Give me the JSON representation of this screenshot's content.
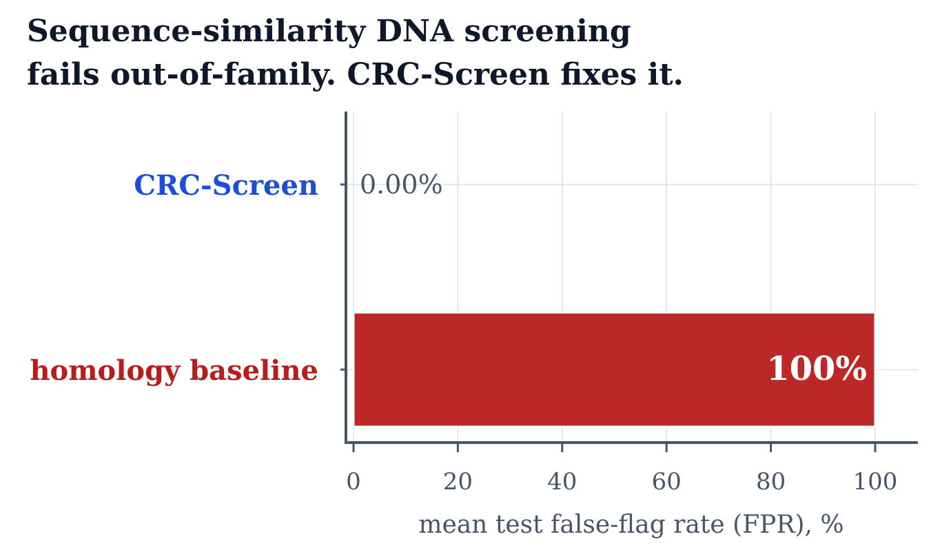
{
  "title_lines": [
    "Sequence-similarity DNA screening",
    "fails out-of-family. CRC-Screen fixes it."
  ],
  "colors": {
    "crc_screen": "#1d4ed8",
    "homology_baseline": "#b91c1c",
    "axis": "#475569",
    "tick_text": "#475569",
    "grid": "#dbe1ea",
    "title": "#0f172a"
  },
  "chart_data": {
    "type": "bar",
    "orientation": "horizontal",
    "title": "Sequence-similarity DNA screening fails out-of-family. CRC-Screen fixes it.",
    "categories": [
      "CRC-Screen",
      "homology baseline"
    ],
    "values": [
      0.0,
      100.0
    ],
    "value_labels": [
      "0.00%",
      "100%"
    ],
    "xlabel": "mean test false-flag rate (FPR), %",
    "ylabel": "",
    "xlim": [
      0,
      108
    ],
    "xticks": [
      0,
      20,
      40,
      60,
      80,
      100
    ],
    "xtick_labels": [
      "0",
      "20",
      "40",
      "60",
      "80",
      "100"
    ],
    "grid": true,
    "legend": "none"
  }
}
